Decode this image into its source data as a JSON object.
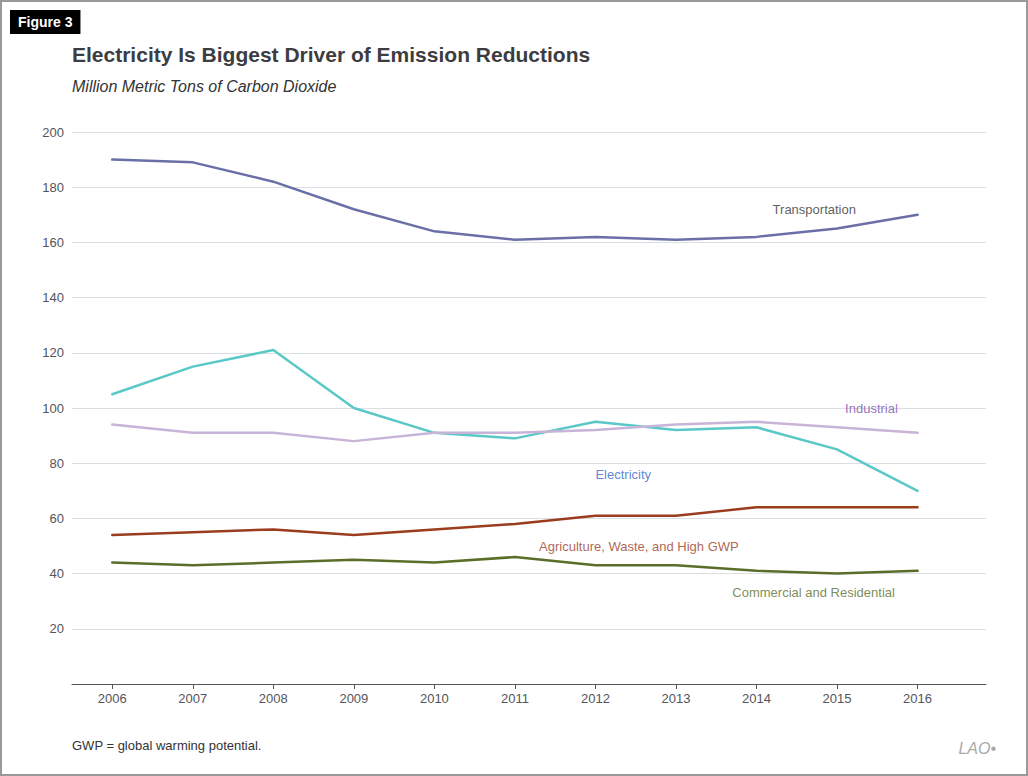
{
  "chart_data": {
    "type": "line",
    "title": "Electricity Is Biggest Driver of Emission Reductions",
    "subtitle": "Million Metric Tons of Carbon Dioxide",
    "figure_label": "Figure 3",
    "footnote": "GWP = global warming potential.",
    "logo": "LAO•",
    "x": [
      2006,
      2007,
      2008,
      2009,
      2010,
      2011,
      2012,
      2013,
      2014,
      2015,
      2016
    ],
    "series": [
      {
        "name": "Transportation",
        "color": "#6B6FA8",
        "values": [
          190,
          189,
          182,
          172,
          164,
          161,
          162,
          161,
          162,
          165,
          170
        ]
      },
      {
        "name": "Electricity",
        "color": "#5BC8C8",
        "values": [
          105,
          115,
          121,
          100,
          91,
          89,
          95,
          92,
          93,
          85,
          70
        ]
      },
      {
        "name": "Industrial",
        "color": "#C8B4D8",
        "values": [
          94,
          91,
          91,
          88,
          91,
          91,
          92,
          94,
          95,
          93,
          91
        ]
      },
      {
        "name": "Agriculture, Waste, and High GWP",
        "color": "#9B3C1E",
        "values": [
          54,
          55,
          56,
          54,
          56,
          58,
          61,
          61,
          64,
          64,
          64
        ]
      },
      {
        "name": "Commercial and Residential",
        "color": "#5A6E2A",
        "values": [
          44,
          43,
          44,
          45,
          44,
          46,
          43,
          43,
          41,
          40,
          41
        ]
      }
    ],
    "annotations": [
      {
        "text": "Transportation",
        "x": 2014.2,
        "y": 172,
        "color": "#333333"
      },
      {
        "text": "Electricity",
        "x": 2012.0,
        "y": 76,
        "color": "#3366CC"
      },
      {
        "text": "Industrial",
        "x": 2015.1,
        "y": 100,
        "color": "#7B4FAA"
      },
      {
        "text": "Agriculture, Waste, and High GWP",
        "x": 2011.3,
        "y": 50,
        "color": "#9B3C1E"
      },
      {
        "text": "Commercial and Residential",
        "x": 2013.7,
        "y": 33,
        "color": "#5A6E2A"
      }
    ],
    "xlim": [
      2005.5,
      2016.85
    ],
    "xticks": [
      2006,
      2007,
      2008,
      2009,
      2010,
      2011,
      2012,
      2013,
      2014,
      2015,
      2016
    ],
    "ylim": [
      0,
      200
    ],
    "yticks": [
      20,
      40,
      60,
      80,
      100,
      120,
      140,
      160,
      180,
      200
    ],
    "grid": true
  }
}
